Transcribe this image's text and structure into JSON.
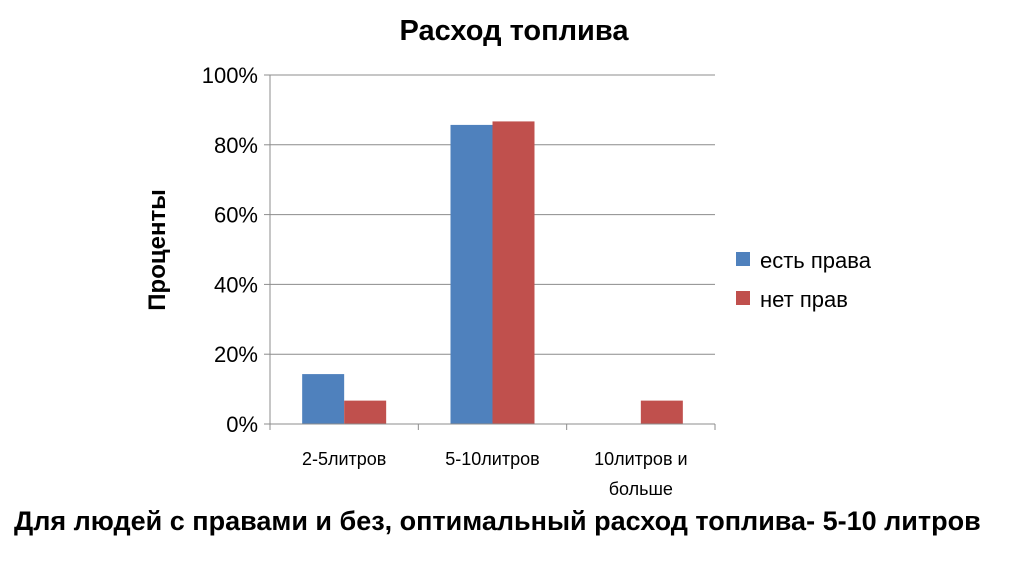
{
  "chart_data": {
    "type": "bar",
    "title": "Расход топлива",
    "ylabel": "Проценты",
    "xlabel": "",
    "ylim": [
      0,
      1
    ],
    "y_ticks": [
      "0%",
      "20%",
      "40%",
      "60%",
      "80%",
      "100%"
    ],
    "categories": [
      [
        "2-5литров"
      ],
      [
        "5-10литров"
      ],
      [
        "10литров и",
        "больше"
      ]
    ],
    "series": [
      {
        "name": "есть права",
        "color": "#4F81BD",
        "values": [
          0.143,
          0.857,
          0
        ]
      },
      {
        "name": "нет прав",
        "color": "#C0504D",
        "values": [
          0.067,
          0.867,
          0.067
        ]
      }
    ],
    "grid": true,
    "legend_position": "right"
  },
  "caption": "Для людей с правами и без, оптимальный расход топлива- 5-10 литров"
}
